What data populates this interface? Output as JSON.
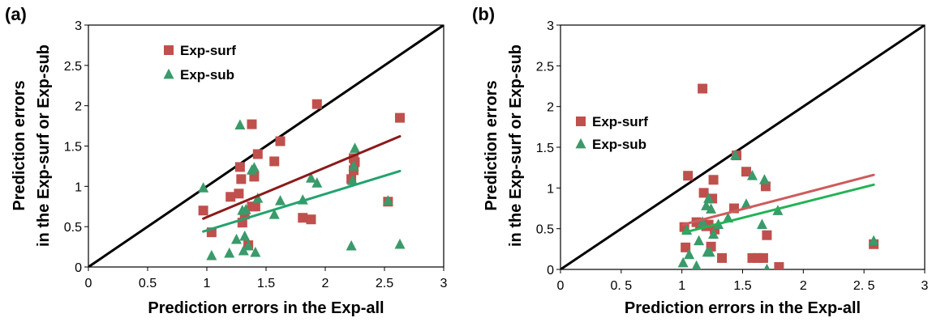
{
  "chart_data": [
    {
      "type": "scatter",
      "panel_label": "(a)",
      "xlabel": "Prediction errors in the Exp-all",
      "ylabel_lines": [
        "Prediction errors",
        "in the Exp-surf or Exp-sub"
      ],
      "xlim": [
        0,
        3
      ],
      "ylim": [
        0,
        3
      ],
      "x_ticks": [
        "0",
        "0.5",
        "1",
        "1.5",
        "2",
        "2.5",
        "3"
      ],
      "y_ticks": [
        "0",
        "0.5",
        "1",
        "1.5",
        "2",
        "2.5",
        "3"
      ],
      "legend_position": "top-left",
      "diagonal": {
        "x": [
          0,
          3
        ],
        "y": [
          0,
          3
        ],
        "color": "#000000"
      },
      "series": [
        {
          "name": "Exp-surf",
          "marker": "square",
          "color": "#c0504d",
          "points": [
            [
              0.97,
              0.7
            ],
            [
              1.04,
              0.43
            ],
            [
              1.2,
              0.87
            ],
            [
              1.27,
              0.91
            ],
            [
              1.28,
              1.24
            ],
            [
              1.29,
              1.09
            ],
            [
              1.3,
              0.55
            ],
            [
              1.32,
              0.65
            ],
            [
              1.35,
              0.27
            ],
            [
              1.38,
              1.77
            ],
            [
              1.38,
              0.75
            ],
            [
              1.4,
              1.12
            ],
            [
              1.41,
              0.75
            ],
            [
              1.43,
              1.4
            ],
            [
              1.57,
              1.31
            ],
            [
              1.62,
              1.56
            ],
            [
              1.81,
              0.61
            ],
            [
              1.88,
              0.59
            ],
            [
              1.93,
              2.02
            ],
            [
              2.22,
              1.09
            ],
            [
              2.24,
              1.2
            ],
            [
              2.24,
              1.35
            ],
            [
              2.25,
              1.3
            ],
            [
              2.53,
              0.81
            ],
            [
              2.63,
              1.85
            ]
          ]
        },
        {
          "name": "Exp-sub",
          "marker": "triangle",
          "color": "#3a9a6a",
          "points": [
            [
              0.97,
              0.98
            ],
            [
              1.04,
              0.14
            ],
            [
              1.19,
              0.17
            ],
            [
              1.25,
              0.34
            ],
            [
              1.28,
              1.76
            ],
            [
              1.3,
              0.7
            ],
            [
              1.31,
              0.2
            ],
            [
              1.32,
              0.38
            ],
            [
              1.33,
              0.71
            ],
            [
              1.35,
              0.26
            ],
            [
              1.38,
              1.2
            ],
            [
              1.4,
              1.23
            ],
            [
              1.41,
              0.18
            ],
            [
              1.43,
              0.85
            ],
            [
              1.57,
              0.65
            ],
            [
              1.62,
              0.82
            ],
            [
              1.81,
              0.83
            ],
            [
              1.88,
              1.1
            ],
            [
              1.93,
              1.04
            ],
            [
              2.22,
              0.26
            ],
            [
              2.23,
              1.07
            ],
            [
              2.24,
              1.25
            ],
            [
              2.25,
              1.47
            ],
            [
              2.53,
              0.82
            ],
            [
              2.63,
              0.28
            ]
          ]
        }
      ],
      "trendlines": [
        {
          "series": "Exp-surf",
          "x": [
            0.97,
            2.63
          ],
          "y": [
            0.6,
            1.62
          ],
          "color": "#8b1a1a"
        },
        {
          "series": "Exp-sub",
          "x": [
            0.97,
            2.63
          ],
          "y": [
            0.44,
            1.19
          ],
          "color": "#22a36e"
        }
      ]
    },
    {
      "type": "scatter",
      "panel_label": "(b)",
      "xlabel": "Prediction errors in the Exp-all",
      "ylabel_lines": [
        "Prediction errors",
        "in the Exp-surf or Exp-sub"
      ],
      "xlim": [
        0,
        3
      ],
      "ylim": [
        0,
        3
      ],
      "x_ticks": [
        "0",
        "0. 5",
        "1",
        "1.5",
        "2",
        "2. 5",
        "3"
      ],
      "y_ticks": [
        "0",
        "0.5",
        "1",
        "1.5",
        "2",
        "2.5",
        "3"
      ],
      "legend_position": "middle-left",
      "diagonal": {
        "x": [
          0,
          3
        ],
        "y": [
          0,
          3
        ],
        "color": "#000000"
      },
      "series": [
        {
          "name": "Exp-surf",
          "marker": "square",
          "color": "#c0504d",
          "points": [
            [
              1.02,
              0.52
            ],
            [
              1.03,
              0.27
            ],
            [
              1.05,
              1.15
            ],
            [
              1.12,
              0.58
            ],
            [
              1.15,
              0.56
            ],
            [
              1.17,
              2.22
            ],
            [
              1.18,
              0.94
            ],
            [
              1.2,
              0.53
            ],
            [
              1.22,
              0.55
            ],
            [
              1.24,
              0.28
            ],
            [
              1.25,
              0.87
            ],
            [
              1.26,
              1.1
            ],
            [
              1.27,
              0.49
            ],
            [
              1.33,
              0.14
            ],
            [
              1.43,
              0.75
            ],
            [
              1.45,
              1.4
            ],
            [
              1.53,
              1.2
            ],
            [
              1.58,
              0.14
            ],
            [
              1.62,
              0.14
            ],
            [
              1.67,
              0.14
            ],
            [
              1.69,
              1.02
            ],
            [
              1.7,
              0.42
            ],
            [
              1.8,
              0.03
            ],
            [
              2.58,
              0.31
            ]
          ]
        },
        {
          "name": "Exp-sub",
          "marker": "triangle",
          "color": "#3a9a6a",
          "points": [
            [
              1.01,
              0.08
            ],
            [
              1.04,
              0.48
            ],
            [
              1.06,
              0.18
            ],
            [
              1.12,
              0.04
            ],
            [
              1.14,
              0.35
            ],
            [
              1.17,
              0.58
            ],
            [
              1.2,
              0.78
            ],
            [
              1.21,
              0.21
            ],
            [
              1.22,
              0.87
            ],
            [
              1.23,
              0.21
            ],
            [
              1.24,
              0.74
            ],
            [
              1.26,
              0.43
            ],
            [
              1.3,
              0.55
            ],
            [
              1.38,
              0.63
            ],
            [
              1.44,
              1.4
            ],
            [
              1.53,
              0.8
            ],
            [
              1.58,
              1.15
            ],
            [
              1.66,
              0.55
            ],
            [
              1.68,
              1.1
            ],
            [
              1.7,
              0.0
            ],
            [
              1.79,
              0.72
            ],
            [
              2.58,
              0.35
            ]
          ]
        }
      ],
      "trendlines": [
        {
          "series": "Exp-surf",
          "x": [
            1.01,
            2.58
          ],
          "y": [
            0.55,
            1.16
          ],
          "color": "#cd5c5c"
        },
        {
          "series": "Exp-sub",
          "x": [
            1.01,
            2.58
          ],
          "y": [
            0.45,
            1.04
          ],
          "color": "#22b355"
        }
      ]
    }
  ]
}
